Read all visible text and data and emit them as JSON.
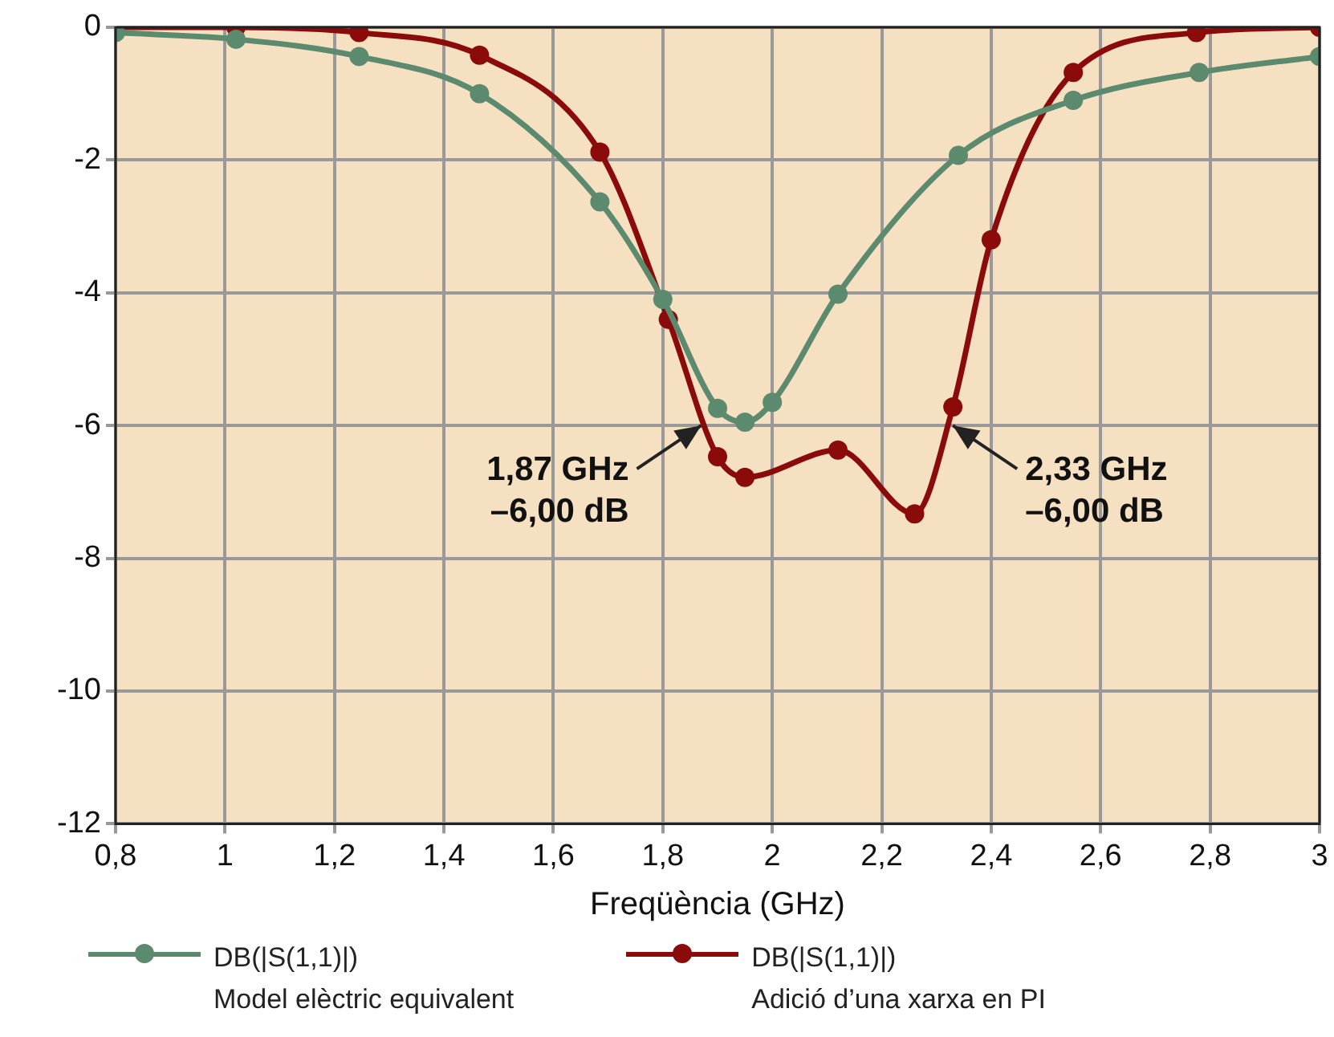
{
  "chart_data": {
    "type": "line",
    "xlabel": "Freqüència (GHz)",
    "xlim": [
      0.8,
      3
    ],
    "xticks": [
      {
        "value": 0.8,
        "label": "0,8"
      },
      1,
      {
        "value": 1.2,
        "label": "1,2"
      },
      {
        "value": 1.4,
        "label": "1,4"
      },
      {
        "value": 1.6,
        "label": "1,6"
      },
      {
        "value": 1.8,
        "label": "1,8"
      },
      2,
      {
        "value": 2.2,
        "label": "2,2"
      },
      {
        "value": 2.4,
        "label": "2,4"
      },
      {
        "value": 2.6,
        "label": "2,6"
      },
      {
        "value": 2.8,
        "label": "2,8"
      },
      3
    ],
    "ylim": [
      -12,
      0
    ],
    "yticks": [
      -12,
      -10,
      -8,
      -6,
      -4,
      -2,
      0
    ],
    "grid": true,
    "legend": "bottom",
    "marker": "circle",
    "line_style": "solid",
    "series": [
      {
        "name": "DB(|S(1,1)|)\nModel elèctric equivalent",
        "color": "#5b8a6e",
        "x": [
          0.8,
          1.02,
          1.245,
          1.465,
          1.685,
          1.8,
          1.9,
          1.95,
          2.0,
          2.12,
          2.34,
          2.55,
          2.78,
          3.0
        ],
        "values": [
          -0.08,
          -0.18,
          -0.44,
          -1.0,
          -2.63,
          -4.1,
          -5.74,
          -5.95,
          -5.65,
          -4.02,
          -1.93,
          -1.1,
          -0.68,
          -0.44
        ]
      },
      {
        "name": "DB(|S(1,1)|)\nAdició d’una xarxa en PI",
        "color": "#8b0a0a",
        "x": [
          0.8,
          1.02,
          1.245,
          1.465,
          1.685,
          1.81,
          1.9,
          1.95,
          2.12,
          2.26,
          2.33,
          2.4,
          2.55,
          2.775,
          3.0
        ],
        "values": [
          0,
          0,
          -0.08,
          -0.42,
          -1.88,
          -4.4,
          -6.47,
          -6.78,
          -6.37,
          -7.33,
          -5.72,
          -3.2,
          -0.68,
          -0.08,
          0
        ]
      }
    ],
    "annotations": [
      {
        "text": "1,87 GHz\n–6,00 dB",
        "x": 1.87,
        "y": -6
      },
      {
        "text": "2,33 GHz\n–6,00 dB",
        "x": 2.33,
        "y": -6
      }
    ]
  }
}
